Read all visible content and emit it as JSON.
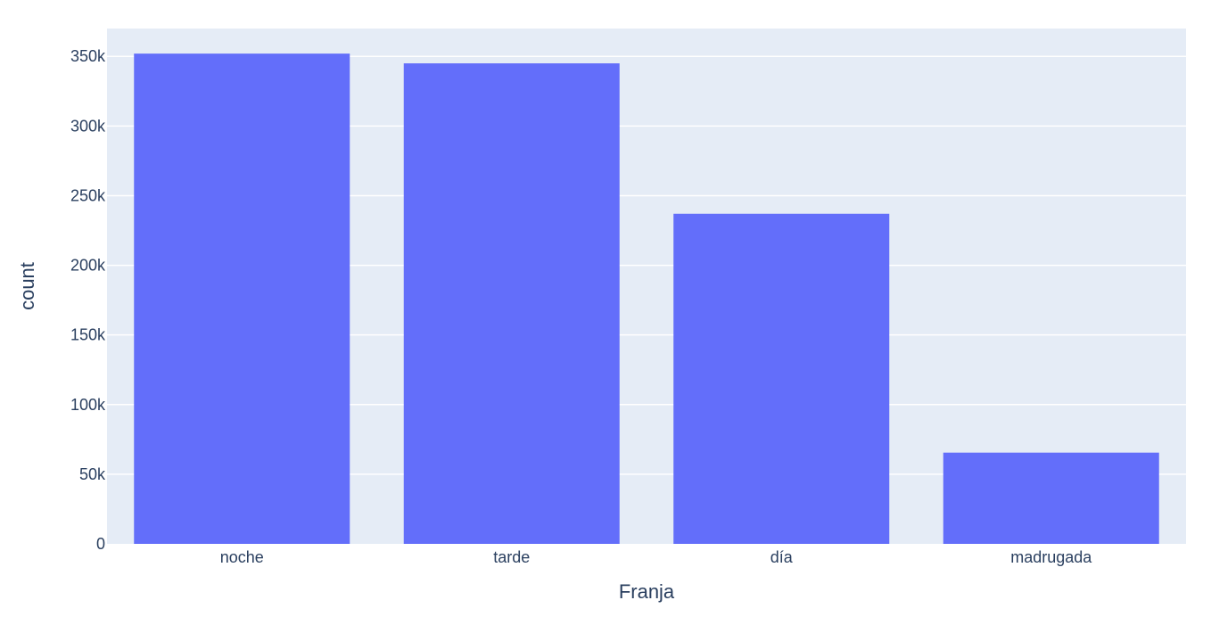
{
  "chart_data": {
    "type": "bar",
    "xlabel": "Franja",
    "ylabel": "count",
    "categories": [
      "noche",
      "tarde",
      "día",
      "madrugada"
    ],
    "values": [
      352000,
      345000,
      237000,
      65500
    ],
    "ylim": [
      0,
      370000
    ],
    "yticks": [
      0,
      50000,
      100000,
      150000,
      200000,
      250000,
      300000,
      350000
    ],
    "ytick_labels": [
      "0",
      "50k",
      "100k",
      "150k",
      "200k",
      "250k",
      "300k",
      "350k"
    ],
    "grid": true,
    "legend": "none",
    "colors": {
      "bar": "#636efa",
      "plot_background": "#e5ecf6",
      "gridline": "#ffffff",
      "text": "#2a3f5f"
    }
  }
}
